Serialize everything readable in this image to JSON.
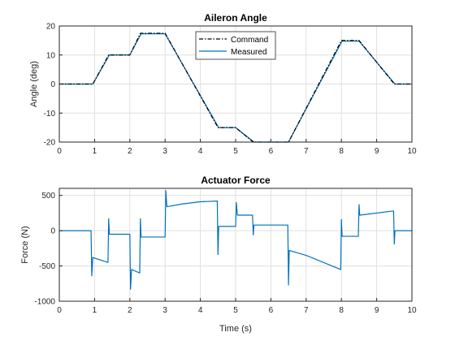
{
  "colors": {
    "measured": "#0072bd",
    "command": "#000000",
    "grid": "#dfdfdf",
    "axis": "#262626"
  },
  "chart_data": [
    {
      "type": "line",
      "title": "Aileron Angle",
      "xlabel": "",
      "ylabel": "Angle (deg)",
      "xlim": [
        0,
        10
      ],
      "ylim": [
        -20,
        20
      ],
      "xticks": [
        0,
        1,
        2,
        3,
        4,
        5,
        6,
        7,
        8,
        9,
        10
      ],
      "yticks": [
        -20,
        -10,
        0,
        10,
        20
      ],
      "grid": true,
      "legend": "top-center",
      "series": [
        {
          "name": "Command",
          "style": "dash-dot",
          "x": [
            0,
            0.95,
            1.4,
            2.0,
            2.3,
            3.0,
            4.5,
            5.0,
            5.5,
            6.5,
            8.0,
            8.5,
            9.5,
            10
          ],
          "y": [
            0,
            0,
            10,
            10,
            17.5,
            17.5,
            -15,
            -15,
            -20,
            -20,
            15,
            15,
            0,
            0
          ]
        },
        {
          "name": "Measured",
          "style": "solid",
          "x": [
            0,
            0.95,
            1.42,
            2.0,
            2.32,
            3.0,
            4.52,
            5.0,
            5.52,
            6.5,
            8.02,
            8.5,
            9.52,
            10
          ],
          "y": [
            0,
            0,
            10,
            10,
            17.3,
            17.3,
            -15,
            -15,
            -20,
            -20,
            14.8,
            14.8,
            0,
            0
          ]
        }
      ]
    },
    {
      "type": "line",
      "title": "Actuator Force",
      "xlabel": "Time (s)",
      "ylabel": "Force (N)",
      "xlim": [
        0,
        10
      ],
      "ylim": [
        -1000,
        600
      ],
      "xticks": [
        0,
        1,
        2,
        3,
        4,
        5,
        6,
        7,
        8,
        9,
        10
      ],
      "yticks": [
        -1000,
        -500,
        0,
        500
      ],
      "grid": true,
      "series": [
        {
          "name": "",
          "style": "solid",
          "x": [
            0,
            0.9,
            0.92,
            0.95,
            1.38,
            1.4,
            1.42,
            2.0,
            2.02,
            2.05,
            2.28,
            2.3,
            2.32,
            3.0,
            3.02,
            3.05,
            3.5,
            4.0,
            4.48,
            4.5,
            4.52,
            5.0,
            5.02,
            5.05,
            5.48,
            5.5,
            5.52,
            6.48,
            6.5,
            6.52,
            7.0,
            7.98,
            8.0,
            8.02,
            8.48,
            8.5,
            8.52,
            9.48,
            9.5,
            9.52,
            10
          ],
          "y": [
            0,
            0,
            -640,
            -380,
            -450,
            170,
            -50,
            -50,
            -830,
            -550,
            -600,
            170,
            -90,
            -90,
            570,
            340,
            380,
            410,
            420,
            -340,
            60,
            60,
            400,
            220,
            220,
            -60,
            80,
            80,
            -770,
            -280,
            -350,
            -550,
            160,
            -80,
            -80,
            370,
            220,
            280,
            -190,
            0,
            0
          ]
        }
      ]
    }
  ]
}
